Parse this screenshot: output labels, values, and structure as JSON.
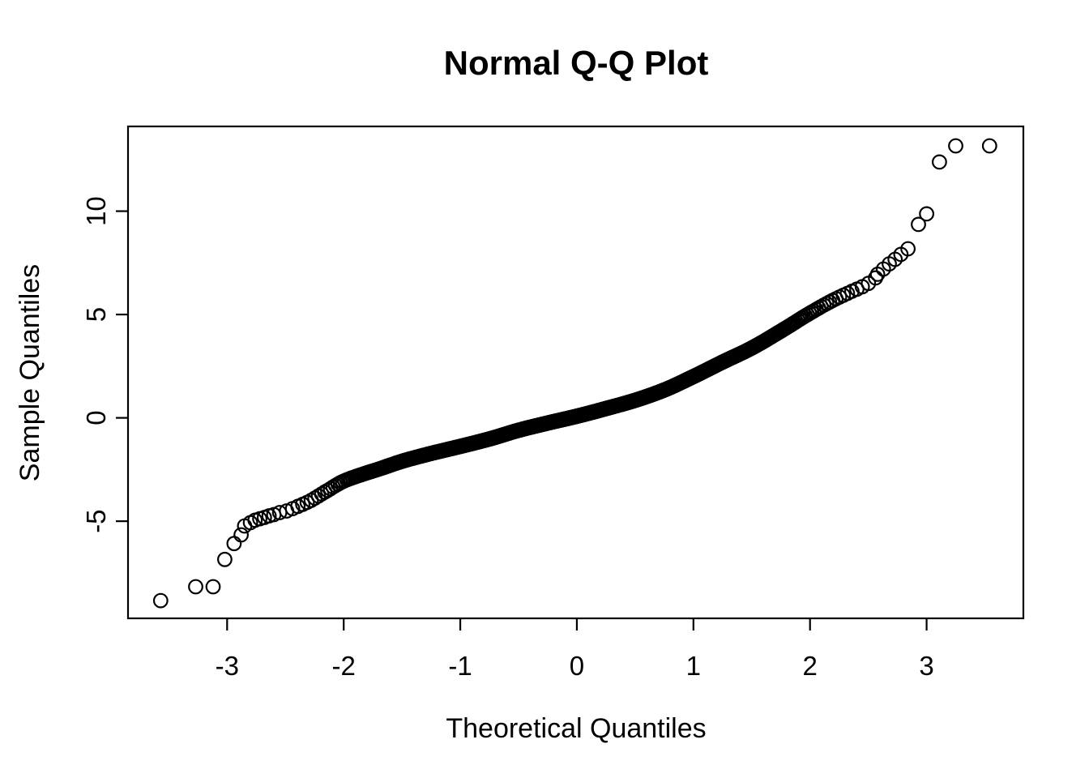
{
  "chart_data": {
    "type": "scatter",
    "title": "Normal Q-Q Plot",
    "xlabel": "Theoretical Quantiles",
    "ylabel": "Sample Quantiles",
    "xlim": [
      -3.85,
      3.83
    ],
    "ylim": [
      -9.7,
      14.1
    ],
    "xticks": [
      -3,
      -2,
      -1,
      0,
      1,
      2,
      3
    ],
    "yticks": [
      -5,
      0,
      5,
      10
    ],
    "grid": false,
    "legend": null,
    "background_color": "#ffffff",
    "point_color": "#000000",
    "axis_color": "#000000",
    "marker": {
      "shape": "open-circle",
      "radius_px": 8.3,
      "stroke_px": 2.2
    },
    "main_band": {
      "comment_free": "",
      "n_points": 1000,
      "p_range": [
        0.0049,
        0.9953
      ],
      "curve_control_points": [
        [
          -2.58,
          -4.62
        ],
        [
          -2.5,
          -4.52
        ],
        [
          -2.4,
          -4.3
        ],
        [
          -2.3,
          -4.05
        ],
        [
          -2.15,
          -3.55
        ],
        [
          -2.0,
          -3.06
        ],
        [
          -1.85,
          -2.75
        ],
        [
          -1.7,
          -2.48
        ],
        [
          -1.5,
          -2.1
        ],
        [
          -1.25,
          -1.72
        ],
        [
          -1.0,
          -1.38
        ],
        [
          -0.75,
          -1.02
        ],
        [
          -0.5,
          -0.6
        ],
        [
          -0.25,
          -0.25
        ],
        [
          0.0,
          0.08
        ],
        [
          0.25,
          0.45
        ],
        [
          0.5,
          0.85
        ],
        [
          0.75,
          1.35
        ],
        [
          1.0,
          2.0
        ],
        [
          1.25,
          2.7
        ],
        [
          1.5,
          3.38
        ],
        [
          1.75,
          4.2
        ],
        [
          2.0,
          5.07
        ],
        [
          2.2,
          5.7
        ],
        [
          2.35,
          6.1
        ],
        [
          2.5,
          6.5
        ],
        [
          2.6,
          6.95
        ]
      ]
    },
    "lower_tail_points": [
      [
        -3.57,
        -8.84
      ],
      [
        -3.27,
        -8.17
      ],
      [
        -3.12,
        -8.17
      ],
      [
        -3.02,
        -6.85
      ],
      [
        -2.94,
        -6.08
      ],
      [
        -2.88,
        -5.66
      ],
      [
        -2.85,
        -5.23
      ],
      [
        -2.8,
        -5.07
      ],
      [
        -2.76,
        -4.95
      ],
      [
        -2.72,
        -4.88
      ],
      [
        -2.68,
        -4.82
      ],
      [
        -2.64,
        -4.74
      ],
      [
        -2.6,
        -4.68
      ]
    ],
    "upper_tail_points": [
      [
        2.58,
        6.95
      ],
      [
        2.63,
        7.2
      ],
      [
        2.68,
        7.45
      ],
      [
        2.73,
        7.67
      ],
      [
        2.78,
        7.91
      ],
      [
        2.84,
        8.18
      ],
      [
        2.93,
        9.36
      ],
      [
        3.0,
        9.87
      ],
      [
        3.11,
        12.38
      ],
      [
        3.25,
        13.16
      ],
      [
        3.54,
        13.16
      ]
    ]
  }
}
